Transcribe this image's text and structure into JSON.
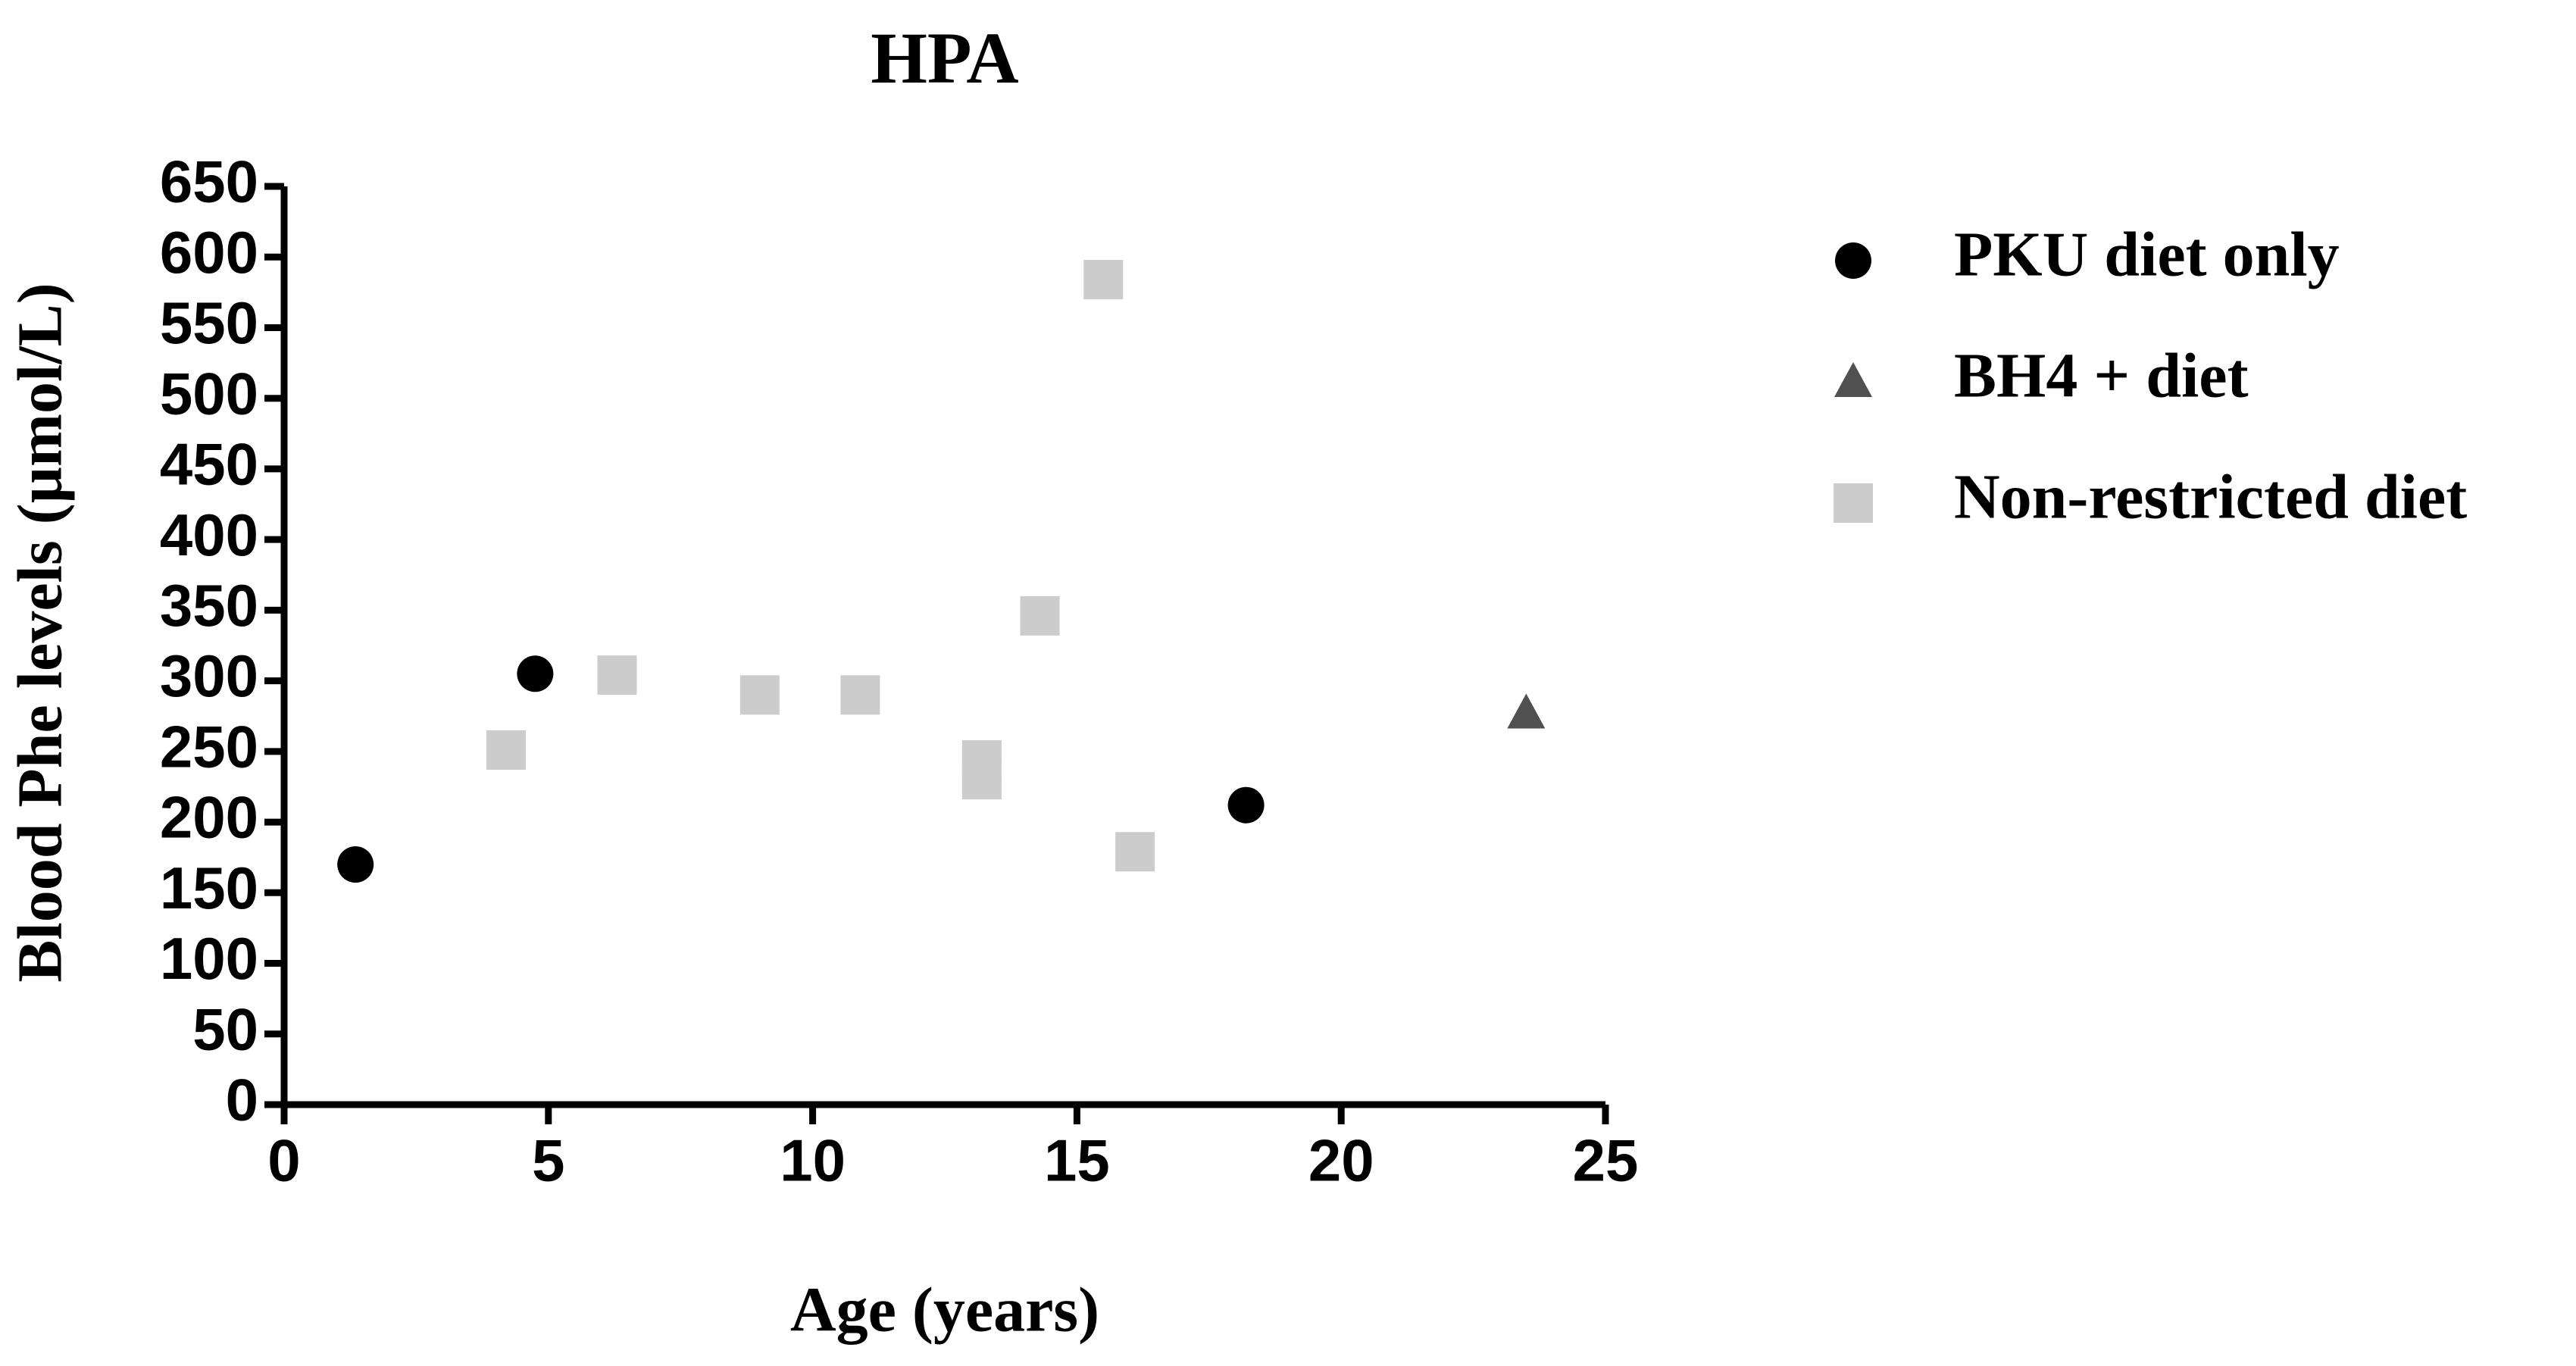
{
  "chart_data": {
    "type": "scatter",
    "title": "HPA",
    "x_label": "Age (years)",
    "y_label": "Blood Phe levels (µmol/L)",
    "xlim": [
      0,
      25
    ],
    "xticks": [
      0,
      5,
      10,
      15,
      20,
      25
    ],
    "ylim": [
      0,
      650
    ],
    "yticks": [
      0,
      50,
      100,
      150,
      200,
      250,
      300,
      350,
      400,
      450,
      500,
      550,
      600,
      650
    ],
    "legend": "right",
    "series": [
      {
        "name": "PKU diet only",
        "color": "#000000",
        "marker": "circle",
        "x": [
          1.35,
          4.75,
          18.2
        ],
        "values": [
          170,
          305,
          212
        ]
      },
      {
        "name": "BH4 + diet",
        "color": "#505050",
        "marker": "triangle",
        "x": [
          23.5
        ],
        "values": [
          277
        ]
      },
      {
        "name": "Non-restricted diet",
        "color": "#cccccc",
        "marker": "square",
        "x": [
          4.2,
          6.3,
          9.0,
          10.9,
          13.2,
          13.2,
          14.3,
          15.5,
          16.1
        ],
        "values": [
          251,
          304,
          290,
          290,
          244,
          230,
          346,
          584,
          179
        ]
      }
    ]
  }
}
